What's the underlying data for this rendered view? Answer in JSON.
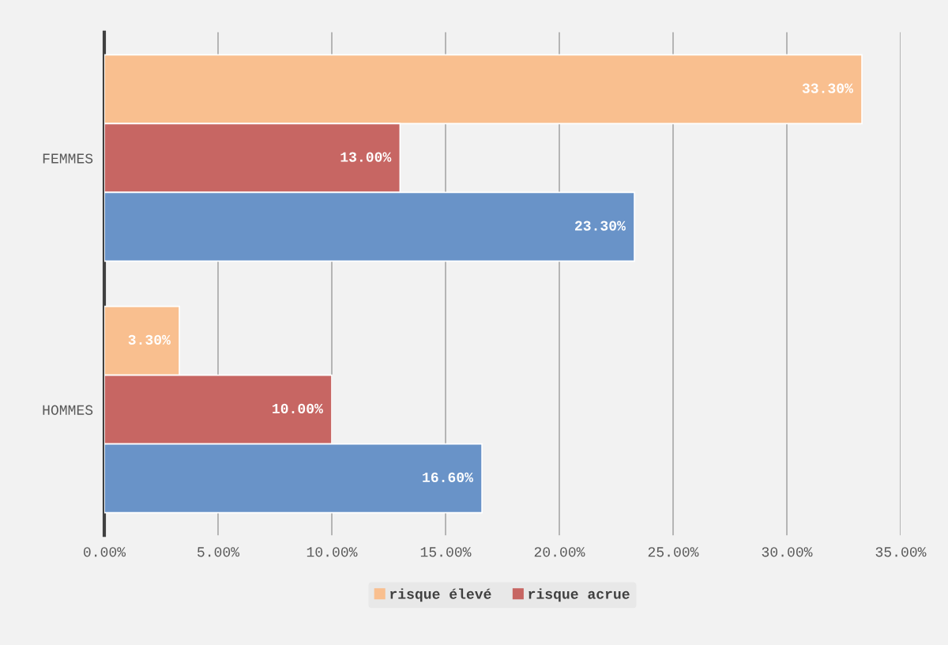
{
  "chart_data": {
    "type": "bar",
    "orientation": "horizontal",
    "categories": [
      "FEMMES",
      "HOMMES"
    ],
    "series": [
      {
        "name": "risque élevé",
        "color": "#f9bf8f",
        "values": [
          33.3,
          3.3
        ],
        "value_labels": [
          "33.30%",
          "3.30%"
        ]
      },
      {
        "name": "risque acrue",
        "color": "#c76663",
        "values": [
          13.0,
          10.0
        ],
        "value_labels": [
          "13.00%",
          "10.00%"
        ]
      },
      {
        "color": "#6993c8",
        "values": [
          23.3,
          16.6
        ],
        "value_labels": [
          "23.30%",
          "16.60%"
        ]
      }
    ],
    "xlim": [
      0,
      35
    ],
    "xticks": [
      {
        "value": 0,
        "label": "0.00%"
      },
      {
        "value": 5,
        "label": "5.00%"
      },
      {
        "value": 10,
        "label": "10.00%"
      },
      {
        "value": 15,
        "label": "15.00%"
      },
      {
        "value": 20,
        "label": "20.00%"
      },
      {
        "value": 25,
        "label": "25.00%"
      },
      {
        "value": 30,
        "label": "30.00%"
      },
      {
        "value": 35,
        "label": "35.00%"
      }
    ],
    "grid": "x",
    "legend": "bottom"
  }
}
